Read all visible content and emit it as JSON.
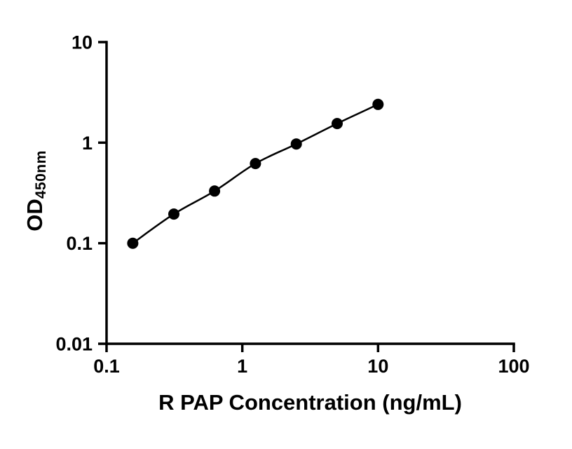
{
  "chart_data": {
    "type": "scatter",
    "title": "",
    "xlabel": "R PAP Concentration (ng/mL)",
    "ylabel_main": "OD",
    "ylabel_sub": "450nm",
    "x_scale": "log",
    "y_scale": "log",
    "xlim": [
      0.1,
      100
    ],
    "ylim": [
      0.01,
      10
    ],
    "x_ticks": {
      "values": [
        0.1,
        1,
        10,
        100
      ],
      "labels": [
        "0.1",
        "1",
        "10",
        "100"
      ]
    },
    "y_ticks": {
      "values": [
        0.01,
        0.1,
        1,
        10
      ],
      "labels": [
        "0.01",
        "0.1",
        "1",
        "10"
      ]
    },
    "grid": false,
    "legend": "none",
    "marker_color": "#000000",
    "line_color": "#000000",
    "axis_color": "#000000",
    "points": [
      {
        "x": 0.156,
        "y": 0.1
      },
      {
        "x": 0.313,
        "y": 0.195
      },
      {
        "x": 0.625,
        "y": 0.33
      },
      {
        "x": 1.25,
        "y": 0.62
      },
      {
        "x": 2.5,
        "y": 0.97
      },
      {
        "x": 5,
        "y": 1.55
      },
      {
        "x": 10,
        "y": 2.4
      }
    ]
  }
}
